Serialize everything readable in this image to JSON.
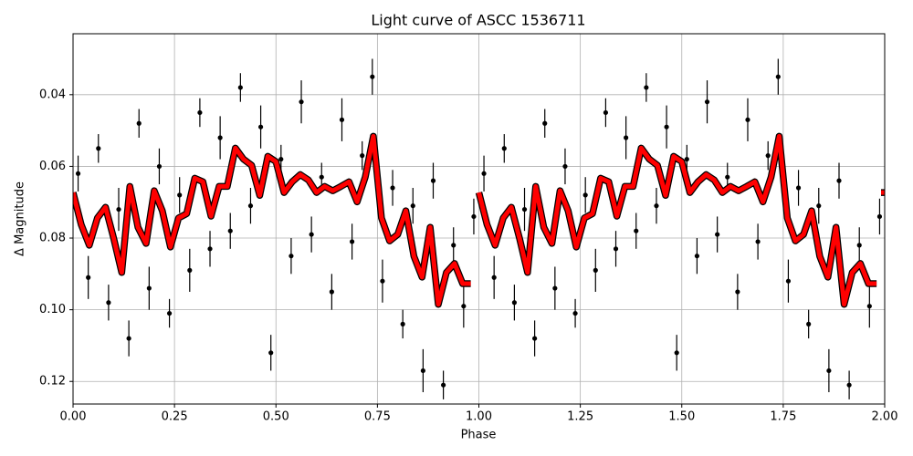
{
  "chart_data": {
    "type": "scatter",
    "title": "Light curve of ASCC 1536711",
    "x_label": "Phase",
    "y_label": "Δ Magnitude",
    "xlim": [
      0,
      2
    ],
    "ylim": [
      0.1263,
      0.023
    ],
    "xticks": [
      {
        "value": 0,
        "label": "0.00"
      },
      {
        "value": 0.25,
        "label": "0.25"
      },
      {
        "value": 0.5,
        "label": "0.50"
      },
      {
        "value": 0.75,
        "label": "0.75"
      },
      {
        "value": 1,
        "label": "1.00"
      },
      {
        "value": 1.25,
        "label": "1.25"
      },
      {
        "value": 1.5,
        "label": "1.50"
      },
      {
        "value": 1.75,
        "label": "1.75"
      },
      {
        "value": 2,
        "label": "2.00"
      }
    ],
    "yticks": [
      0.04,
      0.06,
      0.08,
      {
        "value": 0.1,
        "label": "0.10"
      },
      0.12
    ],
    "grid": true,
    "points": {
      "color": "#000000",
      "x": [
        0.0125,
        0.0375,
        0.0625,
        0.0875,
        0.1125,
        0.1375,
        0.1625,
        0.1875,
        0.2125,
        0.2375,
        0.2625,
        0.2875,
        0.3125,
        0.3375,
        0.3625,
        0.3875,
        0.4125,
        0.4375,
        0.4625,
        0.4875,
        0.5125,
        0.5375,
        0.5625,
        0.5875,
        0.6125,
        0.6375,
        0.6625,
        0.6875,
        0.7125,
        0.7375,
        0.7625,
        0.7875,
        0.8125,
        0.8375,
        0.8625,
        0.8875,
        0.9125,
        0.9375,
        0.9625,
        0.9875,
        1.0125,
        1.0375,
        1.0625,
        1.0875,
        1.1125,
        1.1375,
        1.1625,
        1.1875,
        1.2125,
        1.2375,
        1.2625,
        1.2875,
        1.3125,
        1.3375,
        1.3625,
        1.3875,
        1.4125,
        1.4375,
        1.4625,
        1.4875,
        1.5125,
        1.5375,
        1.5625,
        1.5875,
        1.6125,
        1.6375,
        1.6625,
        1.6875,
        1.7125,
        1.7375,
        1.7625,
        1.7875,
        1.8125,
        1.8375,
        1.8625,
        1.8875,
        1.9125,
        1.9375,
        1.9625,
        1.9875
      ],
      "values": [
        0.062,
        0.091,
        0.055,
        0.098,
        0.072,
        0.108,
        0.048,
        0.094,
        0.06,
        0.101,
        0.068,
        0.089,
        0.045,
        0.083,
        0.052,
        0.078,
        0.038,
        0.071,
        0.049,
        0.112,
        0.058,
        0.085,
        0.042,
        0.079,
        0.063,
        0.095,
        0.047,
        0.081,
        0.057,
        0.035,
        0.092,
        0.066,
        0.104,
        0.071,
        0.117,
        0.064,
        0.121,
        0.082,
        0.099,
        0.074,
        0.062,
        0.091,
        0.055,
        0.098,
        0.072,
        0.108,
        0.048,
        0.094,
        0.06,
        0.101,
        0.068,
        0.089,
        0.045,
        0.083,
        0.052,
        0.078,
        0.038,
        0.071,
        0.049,
        0.112,
        0.058,
        0.085,
        0.042,
        0.079,
        0.063,
        0.095,
        0.047,
        0.081,
        0.057,
        0.035,
        0.092,
        0.066,
        0.104,
        0.071,
        0.117,
        0.064,
        0.121,
        0.082,
        0.099,
        0.074
      ],
      "errors": [
        0.005,
        0.006,
        0.004,
        0.005,
        0.006,
        0.005,
        0.004,
        0.006,
        0.005,
        0.004,
        0.005,
        0.006,
        0.004,
        0.005,
        0.006,
        0.005,
        0.004,
        0.005,
        0.006,
        0.005,
        0.004,
        0.005,
        0.006,
        0.005,
        0.004,
        0.005,
        0.006,
        0.005,
        0.004,
        0.005,
        0.006,
        0.005,
        0.004,
        0.005,
        0.006,
        0.005,
        0.004,
        0.005,
        0.006,
        0.005,
        0.005,
        0.006,
        0.004,
        0.005,
        0.006,
        0.005,
        0.004,
        0.006,
        0.005,
        0.004,
        0.005,
        0.006,
        0.004,
        0.005,
        0.006,
        0.005,
        0.004,
        0.005,
        0.006,
        0.005,
        0.004,
        0.005,
        0.006,
        0.005,
        0.004,
        0.005,
        0.006,
        0.005,
        0.004,
        0.005,
        0.006,
        0.005,
        0.004,
        0.005,
        0.006,
        0.005,
        0.004,
        0.005,
        0.006,
        0.005
      ]
    },
    "line": {
      "color": "#ff0000",
      "x": [
        0,
        0.02,
        0.04,
        0.06,
        0.08,
        0.1,
        0.12,
        0.14,
        0.16,
        0.18,
        0.2,
        0.22,
        0.24,
        0.26,
        0.28,
        0.3,
        0.32,
        0.34,
        0.36,
        0.38,
        0.4,
        0.42,
        0.44,
        0.46,
        0.48,
        0.5,
        0.52,
        0.54,
        0.56,
        0.58,
        0.6,
        0.62,
        0.64,
        0.66,
        0.68,
        0.7,
        0.72,
        0.74,
        0.76,
        0.78,
        0.8,
        0.82,
        0.84,
        0.86,
        0.88,
        0.9,
        0.92,
        0.94,
        0.96,
        0.98,
        0.99,
        1,
        1.02,
        1.04,
        1.06,
        1.08,
        1.1,
        1.12,
        1.14,
        1.16,
        1.18,
        1.2,
        1.22,
        1.24,
        1.26,
        1.28,
        1.3,
        1.32,
        1.34,
        1.36,
        1.38,
        1.4,
        1.42,
        1.44,
        1.46,
        1.48,
        1.5,
        1.52,
        1.54,
        1.56,
        1.58,
        1.6,
        1.62,
        1.64,
        1.66,
        1.68,
        1.7,
        1.72,
        1.74,
        1.76,
        1.78,
        1.8,
        1.82,
        1.84,
        1.86,
        1.88,
        1.9,
        1.92,
        1.94,
        1.96,
        1.98,
        1.99,
        2
      ],
      "values": [
        0.0673,
        0.0762,
        0.082,
        0.0744,
        0.0714,
        0.08,
        0.0896,
        0.0656,
        0.077,
        0.0815,
        0.0668,
        0.0724,
        0.0825,
        0.0744,
        0.0732,
        0.0633,
        0.0643,
        0.0739,
        0.0656,
        0.0656,
        0.0549,
        0.058,
        0.0597,
        0.0681,
        0.0572,
        0.0587,
        0.0673,
        0.0643,
        0.0623,
        0.0638,
        0.0673,
        0.0656,
        0.0668,
        0.0656,
        0.0643,
        0.0699,
        0.063,
        0.0516,
        0.0744,
        0.0808,
        0.079,
        0.0724,
        0.0851,
        0.0909,
        0.077,
        0.0985,
        0.0896,
        0.0871,
        0.0927,
        0.0927,
        null,
        0.0673,
        0.0762,
        0.082,
        0.0744,
        0.0714,
        0.08,
        0.0896,
        0.0656,
        0.077,
        0.0815,
        0.0668,
        0.0724,
        0.0825,
        0.0744,
        0.0732,
        0.0633,
        0.0643,
        0.0739,
        0.0656,
        0.0656,
        0.0549,
        0.058,
        0.0597,
        0.0681,
        0.0572,
        0.0587,
        0.0673,
        0.0643,
        0.0623,
        0.0638,
        0.0673,
        0.0656,
        0.0668,
        0.0656,
        0.0643,
        0.0699,
        0.063,
        0.0516,
        0.0744,
        0.0808,
        0.079,
        0.0724,
        0.0851,
        0.0909,
        0.077,
        0.0985,
        0.0896,
        0.0871,
        0.0927,
        0.0927,
        null,
        0.0673
      ]
    }
  }
}
